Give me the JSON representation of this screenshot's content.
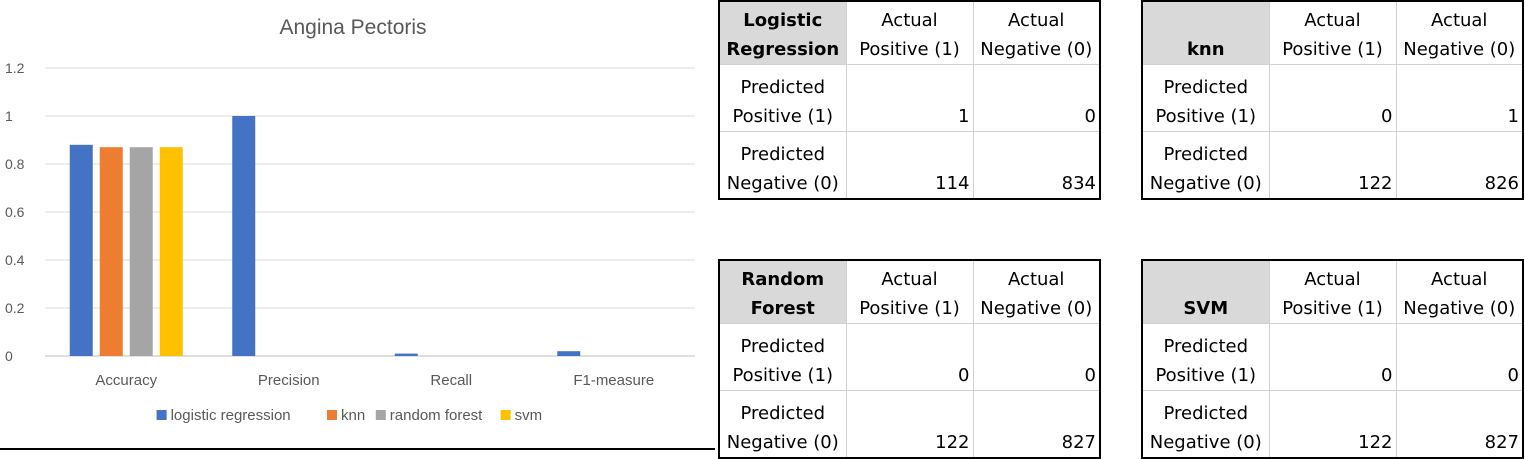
{
  "chart_data": {
    "type": "bar",
    "title": "Angina Pectoris",
    "categories": [
      "Accuracy",
      "Precision",
      "Recall",
      "F1-measure"
    ],
    "series": [
      {
        "name": "logistic regression",
        "color": "#4472c4",
        "values": [
          0.88,
          1.0,
          0.01,
          0.02
        ]
      },
      {
        "name": "knn",
        "color": "#ed7d31",
        "values": [
          0.87,
          0,
          0,
          0
        ]
      },
      {
        "name": "random forest",
        "color": "#a5a5a5",
        "values": [
          0.87,
          0,
          0,
          0
        ]
      },
      {
        "name": "svm",
        "color": "#ffc000",
        "values": [
          0.87,
          0,
          0,
          0
        ]
      }
    ],
    "ylim": [
      0,
      1.2
    ],
    "yticks": [
      "0",
      "0.2",
      "0.4",
      "0.6",
      "0.8",
      "1",
      "1.2"
    ],
    "grid": true,
    "legend": "bottom"
  },
  "matrices": [
    {
      "model": "Logistic\nRegression",
      "col1": "Actual\nPositive (1)",
      "col2": "Actual\nNegative (0)",
      "row1": "Predicted\nPositive (1)",
      "row2": "Predicted\nNegative (0)",
      "tp": "1",
      "fp": "0",
      "fn": "114",
      "tn": "834"
    },
    {
      "model": "knn",
      "col1": "Actual\nPositive (1)",
      "col2": "Actual\nNegative (0)",
      "row1": "Predicted\nPositive (1)",
      "row2": "Predicted\nNegative (0)",
      "tp": "0",
      "fp": "1",
      "fn": "122",
      "tn": "826"
    },
    {
      "model": "Random\nForest",
      "col1": "Actual\nPositive (1)",
      "col2": "Actual\nNegative (0)",
      "row1": "Predicted\nPositive (1)",
      "row2": "Predicted\nNegative (0)",
      "tp": "0",
      "fp": "0",
      "fn": "122",
      "tn": "827"
    },
    {
      "model": "SVM",
      "col1": "Actual\nPositive (1)",
      "col2": "Actual\nNegative (0)",
      "row1": "Predicted\nPositive (1)",
      "row2": "Predicted\nNegative (0)",
      "tp": "0",
      "fp": "0",
      "fn": "122",
      "tn": "827"
    }
  ]
}
